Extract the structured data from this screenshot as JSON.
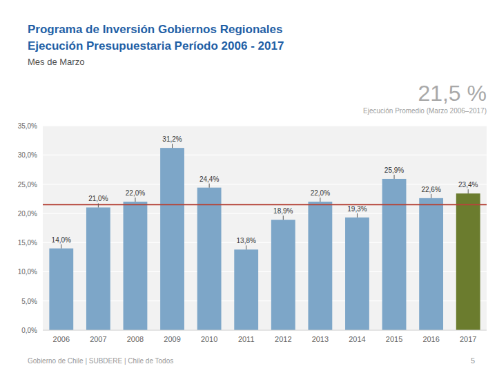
{
  "chart_data": {
    "type": "bar",
    "title": [
      "Programa de Inversión Gobiernos Regionales",
      "Ejecución Presupuestaria Período 2006 - 2017"
    ],
    "subtitle": "Mes de Marzo",
    "categories": [
      "2006",
      "2007",
      "2008",
      "2009",
      "2010",
      "2011",
      "2012",
      "2013",
      "2014",
      "2015",
      "2016",
      "2017"
    ],
    "values": [
      14.0,
      21.0,
      22.0,
      31.2,
      24.4,
      13.8,
      18.9,
      22.0,
      19.3,
      25.9,
      22.6,
      23.4
    ],
    "value_labels": [
      "14,0%",
      "21,0%",
      "22,0%",
      "31,2%",
      "24,4%",
      "13,8%",
      "18,9%",
      "22,0%",
      "19,3%",
      "25,9%",
      "22,6%",
      "23,4%"
    ],
    "data_labels": true,
    "colors": [
      "#7da6c8",
      "#7da6c8",
      "#7da6c8",
      "#7da6c8",
      "#7da6c8",
      "#7da6c8",
      "#7da6c8",
      "#7da6c8",
      "#7da6c8",
      "#7da6c8",
      "#7da6c8",
      "#6b7c2e"
    ],
    "reference_line": {
      "value": 21.5,
      "label": "21,5 %",
      "color": "#b5453a"
    },
    "annotations": [
      "Ejecución Promedio (Marzo 2006–2017)",
      "Gobierno de Chile | SUBDERE | Chile de Todos",
      "5"
    ],
    "ylim": [
      0,
      35
    ],
    "yticks": [
      {
        "value": 0,
        "label": "0,0%"
      },
      {
        "value": 5,
        "label": "5,0%"
      },
      {
        "value": 10,
        "label": "10,0%"
      },
      {
        "value": 15,
        "label": "15,0%"
      },
      {
        "value": 20,
        "label": "20,0%"
      },
      {
        "value": 25,
        "label": "25,0%"
      },
      {
        "value": 30,
        "label": "30,0%"
      },
      {
        "value": 35,
        "label": "35,0%"
      }
    ],
    "grid": true
  }
}
